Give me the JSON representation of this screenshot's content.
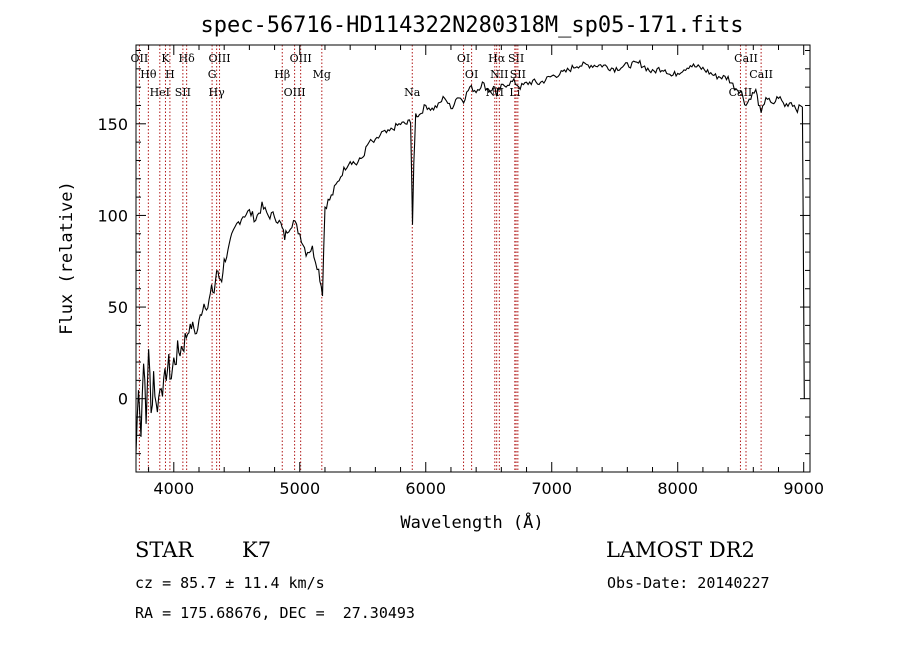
{
  "chart_data": {
    "type": "line",
    "title": "spec-56716-HD114322N280318M_sp05-171.fits",
    "xlabel": "Wavelength (Å)",
    "ylabel": "Flux (relative)",
    "xlim": [
      3700,
      9050
    ],
    "ylim": [
      -40,
      193
    ],
    "xticks": [
      "4000",
      "5000",
      "6000",
      "7000",
      "8000",
      "9000"
    ],
    "yticks": [
      "0",
      "50",
      "100",
      "150"
    ],
    "grid": false,
    "series_color": "#000000",
    "marker_color": "#b01818",
    "series": [
      {
        "x": [
          3700,
          3720,
          3740,
          3760,
          3780,
          3800,
          3820,
          3840,
          3860,
          3880,
          3900,
          3920,
          3940,
          3960,
          3980,
          4000,
          4030,
          4060,
          4090,
          4120,
          4150,
          4180,
          4210,
          4240,
          4270,
          4300,
          4320,
          4340,
          4360,
          4380,
          4400,
          4430,
          4460,
          4500,
          4550,
          4600,
          4650,
          4700,
          4750,
          4800,
          4850,
          4880,
          4900,
          4950,
          5000,
          5050,
          5100,
          5150,
          5180,
          5200,
          5250,
          5300,
          5350,
          5400,
          5450,
          5500,
          5550,
          5600,
          5650,
          5700,
          5750,
          5800,
          5850,
          5880,
          5895,
          5905,
          5920,
          5950,
          6000,
          6050,
          6100,
          6150,
          6200,
          6250,
          6300,
          6350,
          6400,
          6450,
          6500,
          6550,
          6563,
          6580,
          6600,
          6650,
          6700,
          6750,
          6800,
          6850,
          6900,
          6950,
          7000,
          7100,
          7200,
          7300,
          7400,
          7500,
          7600,
          7700,
          7800,
          7850,
          7900,
          7950,
          8000,
          8100,
          8200,
          8300,
          8400,
          8450,
          8500,
          8542,
          8580,
          8620,
          8662,
          8700,
          8750,
          8800,
          8850,
          8900,
          8950,
          8990,
          9000,
          9005
        ],
        "y": [
          -30,
          10,
          -20,
          25,
          -15,
          30,
          -10,
          15,
          -5,
          0,
          10,
          5,
          15,
          18,
          12,
          20,
          25,
          28,
          32,
          38,
          40,
          35,
          45,
          52,
          50,
          60,
          58,
          70,
          66,
          65,
          75,
          80,
          88,
          95,
          100,
          102,
          98,
          105,
          100,
          100,
          95,
          88,
          92,
          97,
          90,
          80,
          82,
          70,
          58,
          105,
          110,
          118,
          125,
          130,
          128,
          132,
          140,
          140,
          145,
          145,
          148,
          150,
          150,
          152,
          95,
          128,
          155,
          155,
          160,
          158,
          160,
          165,
          158,
          165,
          163,
          170,
          168,
          172,
          168,
          170,
          165,
          168,
          170,
          172,
          173,
          170,
          172,
          173,
          172,
          174,
          176,
          178,
          182,
          182,
          182,
          180,
          182,
          183,
          178,
          180,
          180,
          176,
          178,
          182,
          180,
          176,
          175,
          170,
          168,
          160,
          165,
          168,
          155,
          165,
          160,
          165,
          160,
          162,
          158,
          160,
          50,
          0
        ]
      }
    ],
    "lines": [
      {
        "wl": 3727,
        "labels": [
          "OII"
        ]
      },
      {
        "wl": 3798,
        "labels": [
          "Hθ"
        ]
      },
      {
        "wl": 3889,
        "labels": [
          "HeI"
        ]
      },
      {
        "wl": 3934,
        "labels": [
          "K"
        ]
      },
      {
        "wl": 3969,
        "labels": [
          "H"
        ]
      },
      {
        "wl": 4072,
        "labels": [
          "SII"
        ]
      },
      {
        "wl": 4102,
        "labels": [
          "Hδ"
        ]
      },
      {
        "wl": 4304,
        "labels": [
          "G"
        ]
      },
      {
        "wl": 4340,
        "labels": [
          "Hγ"
        ]
      },
      {
        "wl": 4363,
        "labels": [
          "OIII"
        ]
      },
      {
        "wl": 4861,
        "labels": [
          "Hβ"
        ]
      },
      {
        "wl": 4959,
        "labels": [
          "OIII"
        ]
      },
      {
        "wl": 5007,
        "labels": [
          "OIII"
        ]
      },
      {
        "wl": 5175,
        "labels": [
          "Mg"
        ]
      },
      {
        "wl": 5893,
        "labels": [
          "Na"
        ]
      },
      {
        "wl": 6300,
        "labels": [
          "OI"
        ]
      },
      {
        "wl": 6364,
        "labels": [
          "OI"
        ]
      },
      {
        "wl": 6548,
        "labels": [
          "NII"
        ]
      },
      {
        "wl": 6563,
        "labels": [
          "Hα"
        ]
      },
      {
        "wl": 6584,
        "labels": [
          "NII"
        ]
      },
      {
        "wl": 6707,
        "labels": [
          "Li"
        ]
      },
      {
        "wl": 6717,
        "labels": [
          "SII"
        ]
      },
      {
        "wl": 6731,
        "labels": [
          "SII"
        ]
      },
      {
        "wl": 8498,
        "labels": [
          "CaII"
        ]
      },
      {
        "wl": 8542,
        "labels": [
          "CaII"
        ]
      },
      {
        "wl": 8662,
        "labels": [
          "CaII"
        ]
      }
    ]
  },
  "info": {
    "class_label": "STAR",
    "subclass": "K7",
    "survey": "LAMOST DR2",
    "cz": "cz = 85.7 ± 11.4 km/s",
    "obs_date": "Obs-Date: 20140227",
    "coords": "RA = 175.68676, DEC =  27.30493"
  }
}
